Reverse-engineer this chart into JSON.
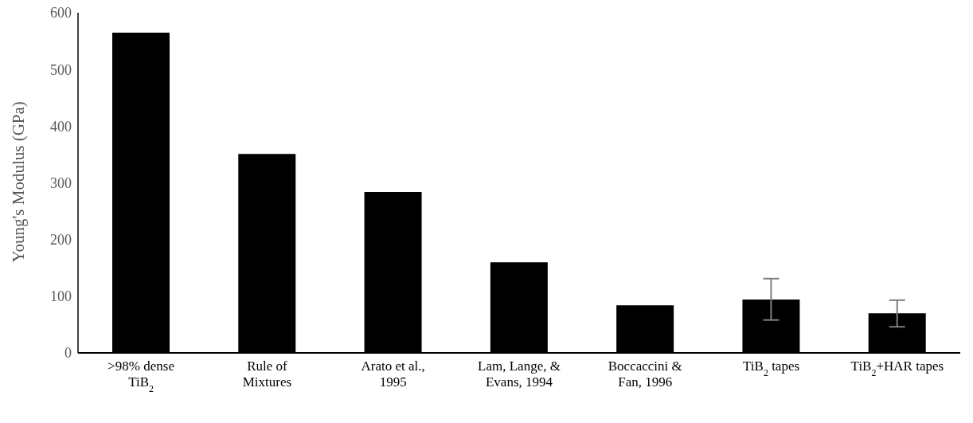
{
  "chart_data": {
    "type": "bar",
    "ylabel": "Young's Modulus (GPa)",
    "categories": [
      ">98% dense TiB$_{2}$",
      "Rule of Mixtures",
      "Arato et al., 1995",
      "Lam, Lange, & Evans, 1994",
      "Boccaccini & Fan, 1996",
      "TiB$_{2}$ tapes",
      "TiB$_{2}$+HAR tapes"
    ],
    "values": [
      565,
      351,
      284,
      160,
      84,
      94,
      70
    ],
    "errors": [
      null,
      null,
      null,
      null,
      null,
      [
        58,
        131
      ],
      [
        46,
        93
      ]
    ],
    "color": "#000000",
    "ylim": [
      0,
      600
    ],
    "yticks": [
      0,
      100,
      200,
      300,
      400,
      500,
      600
    ],
    "grid": false,
    "legend": false
  }
}
